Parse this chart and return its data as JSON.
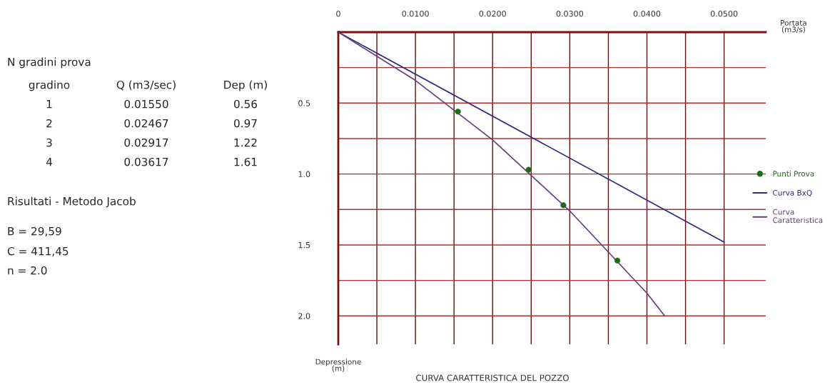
{
  "chart_data": {
    "type": "line",
    "title": "CURVA CARATTERISTICA DEL POZZO",
    "xlabel": "Portata\n(m3/s)",
    "ylabel": "Depressione\n(m)",
    "series": [
      {
        "name": "Punti Prova",
        "type": "scatter",
        "color": "#1a6b1a",
        "marker": "circle",
        "x": [
          0.0155,
          0.02467,
          0.02917,
          0.03617
        ],
        "values": [
          0.56,
          0.97,
          1.22,
          1.61
        ]
      },
      {
        "name": "Curva BxQ",
        "color": "#2b2b80",
        "line_style": "solid",
        "x": [
          0,
          0.05
        ],
        "values": [
          0,
          1.48
        ]
      },
      {
        "name": "Curva\nCaratteristica",
        "color": "#6a3a7a",
        "line_style": "solid",
        "x": [
          0,
          0.01,
          0.02,
          0.03,
          0.04,
          0.0423
        ],
        "values": [
          0,
          0.34,
          0.76,
          1.26,
          1.84,
          2.0
        ]
      }
    ],
    "xlim": [
      0,
      0.0554
    ],
    "ylim": [
      2.2,
      0
    ],
    "xticks": [
      0,
      {
        "value": 0.005,
        "label": null
      },
      {
        "value": 0.01,
        "label": "0.0100"
      },
      {
        "value": 0.015,
        "label": null
      },
      {
        "value": 0.02,
        "label": "0.0200"
      },
      {
        "value": 0.025,
        "label": null
      },
      {
        "value": 0.03,
        "label": "0.0300"
      },
      {
        "value": 0.035,
        "label": null
      },
      {
        "value": 0.04,
        "label": "0.0400"
      },
      {
        "value": 0.045,
        "label": null
      },
      {
        "value": 0.05,
        "label": "0.0500"
      }
    ],
    "yticks": [
      {
        "value": 0.25,
        "label": null
      },
      {
        "value": 0.5,
        "label": "0.5"
      },
      {
        "value": 0.75,
        "label": null
      },
      {
        "value": 1.0,
        "label": "1.0"
      },
      {
        "value": 1.25,
        "label": null
      },
      {
        "value": 1.5,
        "label": "1.5"
      },
      {
        "value": 1.75,
        "label": null
      },
      {
        "value": 2.0,
        "label": "2.0"
      }
    ],
    "grid": true,
    "legend": "right",
    "annotations": [
      "N gradini prova",
      "gradino",
      "Q (m3/sec)",
      "Dep (m)",
      "1",
      "0.01550",
      "0.56",
      "2",
      "0.02467",
      "0.97",
      "3",
      "0.02917",
      "1.22",
      "4",
      "0.03617",
      "1.61",
      "Risultati - Metodo Jacob",
      "B = 29,59",
      "C = 411,45",
      "n = 2.0"
    ]
  }
}
